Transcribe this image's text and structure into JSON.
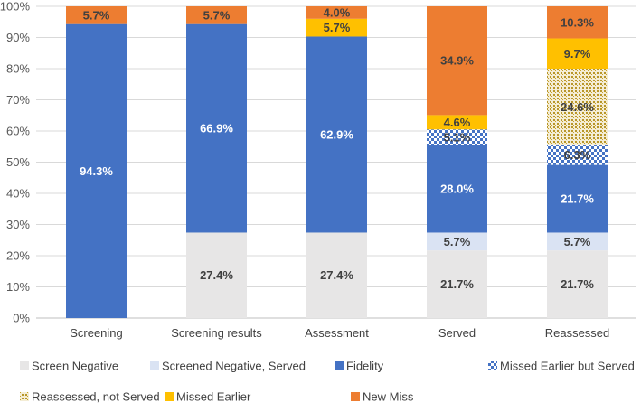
{
  "chart_data": {
    "type": "bar",
    "stacked": true,
    "percent": true,
    "categories": [
      "Screening",
      "Screening results",
      "Assessment",
      "Served",
      "Reassessed"
    ],
    "ylim": [
      0,
      100
    ],
    "yticks": [
      "0%",
      "10%",
      "20%",
      "30%",
      "40%",
      "50%",
      "60%",
      "70%",
      "80%",
      "90%",
      "100%"
    ],
    "legend_position": "bottom",
    "series": [
      {
        "name": "Screen Negative",
        "color": "#e7e6e6",
        "pattern": "solid",
        "label_color": "#404040",
        "values": [
          0,
          27.4,
          27.4,
          21.7,
          21.7
        ],
        "labels": [
          "",
          "27.4%",
          "27.4%",
          "21.7%",
          "21.7%"
        ]
      },
      {
        "name": "Screened Negative, Served",
        "color": "#dae3f3",
        "pattern": "solid",
        "label_color": "#404040",
        "values": [
          0,
          0,
          0,
          5.7,
          5.7
        ],
        "labels": [
          "",
          "",
          "",
          "5.7%",
          "5.7%"
        ]
      },
      {
        "name": "Fidelity",
        "color": "#4472c4",
        "pattern": "solid",
        "label_color": "#ffffff",
        "values": [
          94.3,
          66.9,
          62.9,
          28.0,
          21.7
        ],
        "labels": [
          "94.3%",
          "66.9%",
          "62.9%",
          "28.0%",
          "21.7%"
        ]
      },
      {
        "name": "Missed Earlier but Served",
        "color": "#4472c4",
        "pattern": "checker",
        "label_color": "#404040",
        "values": [
          0,
          0,
          0,
          5.1,
          6.3
        ],
        "labels": [
          "",
          "",
          "",
          "5.1%",
          "6.3%"
        ]
      },
      {
        "name": "Reassessed, not Served",
        "color": "#c9a227",
        "pattern": "dots",
        "label_color": "#404040",
        "values": [
          0,
          0,
          0,
          0,
          24.6
        ],
        "labels": [
          "",
          "",
          "",
          "",
          "24.6%"
        ]
      },
      {
        "name": "Missed Earlier",
        "color": "#ffc000",
        "pattern": "solid",
        "label_color": "#404040",
        "values": [
          0,
          0,
          5.7,
          4.6,
          9.7
        ],
        "labels": [
          "",
          "",
          "5.7%",
          "4.6%",
          "9.7%"
        ]
      },
      {
        "name": "New Miss",
        "color": "#ed7d31",
        "pattern": "solid",
        "label_color": "#404040",
        "values": [
          5.7,
          5.7,
          4.0,
          34.9,
          10.3
        ],
        "labels": [
          "5.7%",
          "5.7%",
          "4.0%",
          "34.9%",
          "10.3%"
        ]
      }
    ]
  }
}
